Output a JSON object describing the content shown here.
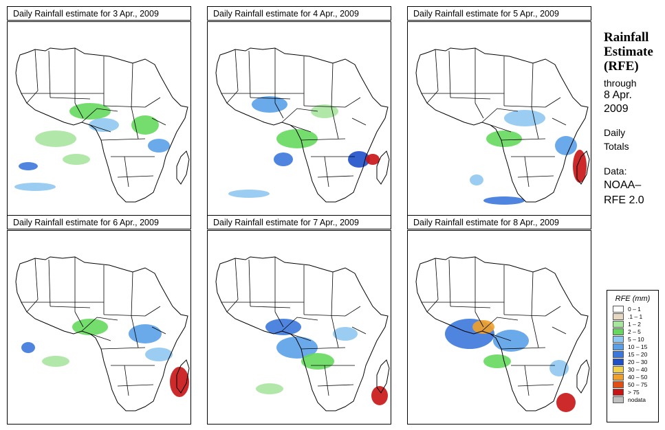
{
  "panels": [
    {
      "title": "Daily Rainfall estimate for  3 Apr., 2009"
    },
    {
      "title": "Daily Rainfall estimate for  4 Apr., 2009"
    },
    {
      "title": "Daily Rainfall estimate for  5 Apr., 2009"
    },
    {
      "title": "Daily Rainfall estimate for  6 Apr., 2009"
    },
    {
      "title": "Daily Rainfall estimate for  7 Apr., 2009"
    },
    {
      "title": "Daily Rainfall estimate for  8 Apr., 2009"
    }
  ],
  "side": {
    "line1": "Rainfall",
    "line2": "Estimate",
    "line3": "(RFE)",
    "through": "through",
    "date1": "8 Apr.",
    "date2": "2009",
    "daily1": "Daily",
    "daily2": "Totals",
    "data1": "Data:",
    "data2": "NOAA–",
    "data3": "RFE 2.0"
  },
  "legend": {
    "title": "RFE (mm)",
    "items": [
      {
        "label": "0 – 1",
        "color": "#ffffff"
      },
      {
        "label": ".1 – 1",
        "color": "#e6d7c0"
      },
      {
        "label": "1 – 2",
        "color": "#a8e6a0"
      },
      {
        "label": "2 – 5",
        "color": "#66d85e"
      },
      {
        "label": "5 – 10",
        "color": "#8fc8f0"
      },
      {
        "label": "10 – 15",
        "color": "#5aa0e8"
      },
      {
        "label": "15 – 20",
        "color": "#3c78dc"
      },
      {
        "label": "20 – 30",
        "color": "#1e50c8"
      },
      {
        "label": "30 – 40",
        "color": "#f0d250"
      },
      {
        "label": "40 – 50",
        "color": "#f0a028"
      },
      {
        "label": "50 – 75",
        "color": "#e05014"
      },
      {
        "label": "> 75",
        "color": "#c81414"
      },
      {
        "label": "nodata",
        "color": "#c0c0c0"
      }
    ]
  }
}
